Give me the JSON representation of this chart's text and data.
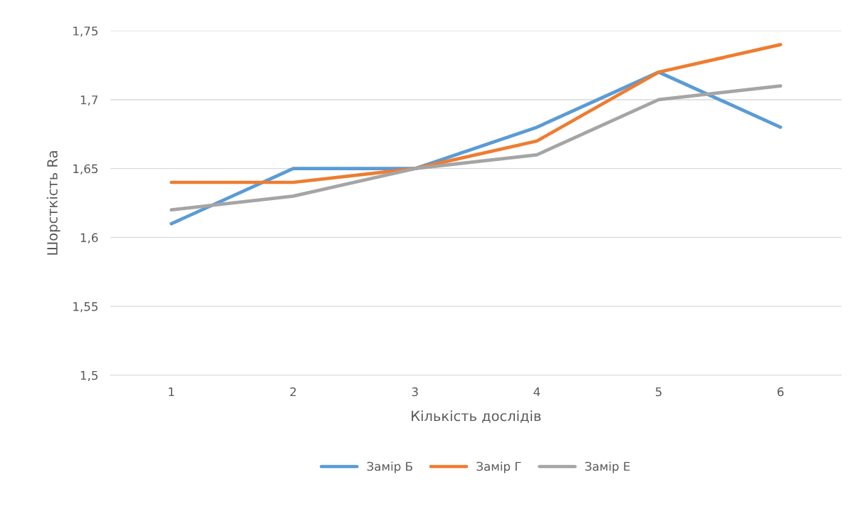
{
  "chart_data": {
    "type": "line",
    "xlabel": "Кількість дослідів",
    "ylabel": "Шорсткість Ra",
    "categories": [
      "1",
      "2",
      "3",
      "4",
      "5",
      "6"
    ],
    "series": [
      {
        "name": "Замір Б",
        "color": "#5b9bd5",
        "values": [
          1.61,
          1.65,
          1.65,
          1.68,
          1.72,
          1.68
        ]
      },
      {
        "name": "Замір Г",
        "color": "#ed7d31",
        "values": [
          1.64,
          1.64,
          1.65,
          1.67,
          1.72,
          1.74
        ]
      },
      {
        "name": "Замір Е",
        "color": "#a5a5a5",
        "values": [
          1.62,
          1.63,
          1.65,
          1.66,
          1.7,
          1.71
        ]
      }
    ],
    "ylim": [
      1.5,
      1.75
    ],
    "yticks": [
      {
        "value": 1.5,
        "label": "1,5"
      },
      {
        "value": 1.55,
        "label": "1,55"
      },
      {
        "value": 1.6,
        "label": "1,6"
      },
      {
        "value": 1.65,
        "label": "1,65"
      },
      {
        "value": 1.7,
        "label": "1,7"
      },
      {
        "value": 1.75,
        "label": "1,75"
      }
    ],
    "grid": "y",
    "legend": "bottom",
    "marker": "none",
    "line_style": "solid"
  }
}
